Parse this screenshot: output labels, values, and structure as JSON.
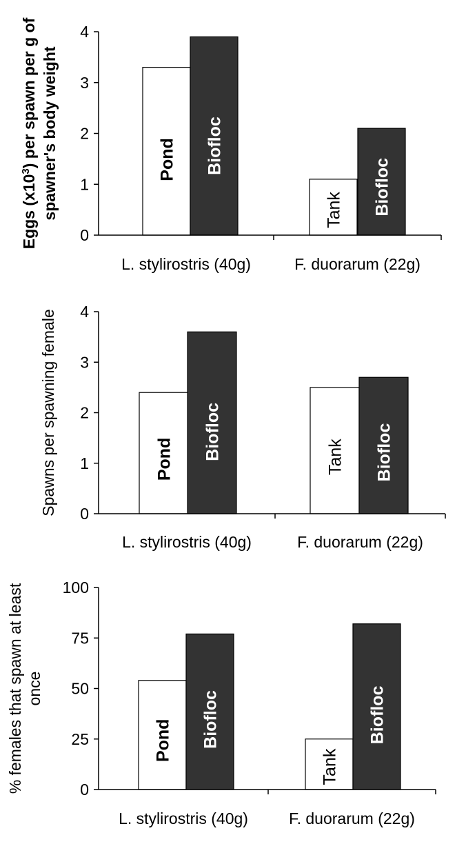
{
  "chart_data": [
    {
      "type": "bar",
      "ylabel_lines": [
        "Eggs (x10",
        "3",
        ") per spawn per g of",
        "spawner's body weight"
      ],
      "ylim": [
        0,
        4
      ],
      "yticks": [
        "0",
        "1",
        "2",
        "3",
        "4"
      ],
      "categories": [
        "L. stylirostris (40g)",
        "F. duorarum (22g)"
      ],
      "bars": [
        {
          "category": "L. stylirostris (40g)",
          "label": "Pond",
          "value": 3.3,
          "fill": "#ffffff"
        },
        {
          "category": "L. stylirostris (40g)",
          "label": "Biofloc",
          "value": 3.9,
          "fill": "#333333"
        },
        {
          "category": "F. duorarum (22g)",
          "label": "Tank",
          "value": 1.1,
          "fill": "#ffffff"
        },
        {
          "category": "F. duorarum (22g)",
          "label": "Biofloc",
          "value": 2.1,
          "fill": "#333333"
        }
      ]
    },
    {
      "type": "bar",
      "ylabel_lines": [
        "Spawns per spawning female"
      ],
      "ylim": [
        0,
        4
      ],
      "yticks": [
        "0",
        "1",
        "2",
        "3",
        "4"
      ],
      "categories": [
        "L. stylirostris (40g)",
        "F. duorarum (22g)"
      ],
      "bars": [
        {
          "category": "L. stylirostris (40g)",
          "label": "Pond",
          "value": 2.4,
          "fill": "#ffffff"
        },
        {
          "category": "L. stylirostris (40g)",
          "label": "Biofloc",
          "value": 3.6,
          "fill": "#333333"
        },
        {
          "category": "F. duorarum (22g)",
          "label": "Tank",
          "value": 2.5,
          "fill": "#ffffff"
        },
        {
          "category": "F. duorarum (22g)",
          "label": "Biofloc",
          "value": 2.7,
          "fill": "#333333"
        }
      ]
    },
    {
      "type": "bar",
      "ylabel_lines": [
        "% females that spawn at least",
        "once"
      ],
      "ylim": [
        0,
        100
      ],
      "yticks": [
        "0",
        "25",
        "50",
        "75",
        "100"
      ],
      "categories": [
        "L. stylirostris (40g)",
        "F. duorarum (22g)"
      ],
      "bars": [
        {
          "category": "L. stylirostris (40g)",
          "label": "Pond",
          "value": 54,
          "fill": "#ffffff"
        },
        {
          "category": "L. stylirostris (40g)",
          "label": "Biofloc",
          "value": 77,
          "fill": "#333333"
        },
        {
          "category": "F. duorarum (22g)",
          "label": "Tank",
          "value": 25,
          "fill": "#ffffff"
        },
        {
          "category": "F. duorarum (22g)",
          "label": "Biofloc",
          "value": 82,
          "fill": "#333333"
        }
      ]
    }
  ]
}
